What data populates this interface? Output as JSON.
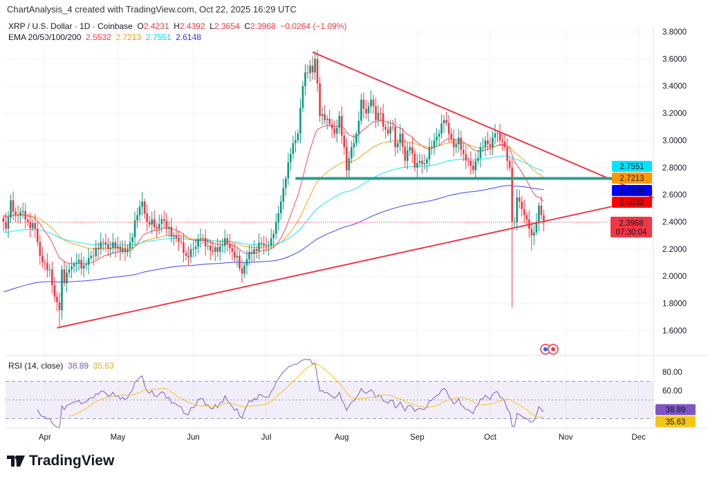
{
  "header": {
    "created_by": "ChartAnalysis_4 created with TradingView.com, Oct 22, 2025 16:29 UTC"
  },
  "legend": {
    "symbol": "XRP / U.S. Dollar · 1D · Coinbase",
    "open_label": "O",
    "open": "2.4231",
    "high_label": "H",
    "high": "2.4392",
    "low_label": "L",
    "low": "2.3654",
    "close_label": "C",
    "close": "2.3968",
    "change": "−0.0264 (−1.09%)",
    "ema_label": "EMA 20/50/100/200",
    "ema20": "2.5532",
    "ema50": "2.7213",
    "ema100": "2.7551",
    "ema200": "2.6148"
  },
  "rsi_legend": {
    "label": "RSI (14, close)",
    "rsi": "38.89",
    "rsi_ma": "35.63"
  },
  "badges": {
    "ema100": "2.7551",
    "ema50": "2.7213",
    "ema200": "2.6148",
    "ema20": "2.5532",
    "last_price": "2.3968",
    "countdown": "07:30:04",
    "rsi": "38.89",
    "rsi_ma": "35.63"
  },
  "logo": {
    "text": "TradingView"
  },
  "colors": {
    "up": "#089981",
    "down": "#f23645",
    "ema20": "#f23645",
    "ema50": "#ff9800",
    "ema100": "#00e5ff",
    "ema200": "#2a2aff",
    "trendline": "#f23645",
    "support": "#2a9d8f",
    "rsi": "#7e57c2",
    "rsi_ma": "#f5c518"
  },
  "chart_data": {
    "type": "candlestick",
    "title": "XRP / U.S. Dollar · 1D · Coinbase",
    "x_unit": "days since Mar 15 2025",
    "x_range": [
      0,
      267
    ],
    "x_ticks": [
      {
        "day": 17,
        "label": "Apr"
      },
      {
        "day": 47,
        "label": "May"
      },
      {
        "day": 78,
        "label": "Jun"
      },
      {
        "day": 108,
        "label": "Jul"
      },
      {
        "day": 139,
        "label": "Aug"
      },
      {
        "day": 170,
        "label": "Sep"
      },
      {
        "day": 200,
        "label": "Oct"
      },
      {
        "day": 231,
        "label": "Nov"
      },
      {
        "day": 261,
        "label": "Dec"
      }
    ],
    "y_range": [
      1.5,
      3.9
    ],
    "y_ticks": [
      "3.8000",
      "3.6000",
      "3.4000",
      "3.2000",
      "3.0000",
      "2.8000",
      "2.6000",
      "2.4000",
      "2.2000",
      "2.0000",
      "1.8000",
      "1.6000"
    ],
    "close_anchors": [
      [
        0,
        2.4
      ],
      [
        1,
        2.35
      ],
      [
        3,
        2.56
      ],
      [
        5,
        2.45
      ],
      [
        8,
        2.48
      ],
      [
        10,
        2.4
      ],
      [
        13,
        2.35
      ],
      [
        15,
        2.15
      ],
      [
        17,
        2.1
      ],
      [
        19,
        2.05
      ],
      [
        21,
        1.85
      ],
      [
        23,
        1.75
      ],
      [
        24,
        2.05
      ],
      [
        25,
        1.95
      ],
      [
        27,
        2.05
      ],
      [
        30,
        2.1
      ],
      [
        33,
        2.08
      ],
      [
        36,
        2.15
      ],
      [
        39,
        2.2
      ],
      [
        41,
        2.25
      ],
      [
        43,
        2.2
      ],
      [
        45,
        2.25
      ],
      [
        47,
        2.22
      ],
      [
        50,
        2.18
      ],
      [
        52,
        2.25
      ],
      [
        55,
        2.45
      ],
      [
        57,
        2.55
      ],
      [
        59,
        2.4
      ],
      [
        61,
        2.42
      ],
      [
        63,
        2.35
      ],
      [
        65,
        2.42
      ],
      [
        67,
        2.35
      ],
      [
        70,
        2.3
      ],
      [
        73,
        2.25
      ],
      [
        75,
        2.15
      ],
      [
        78,
        2.2
      ],
      [
        81,
        2.28
      ],
      [
        83,
        2.22
      ],
      [
        86,
        2.18
      ],
      [
        89,
        2.22
      ],
      [
        91,
        2.28
      ],
      [
        94,
        2.18
      ],
      [
        96,
        2.15
      ],
      [
        98,
        2.02
      ],
      [
        99,
        2.08
      ],
      [
        101,
        2.18
      ],
      [
        103,
        2.2
      ],
      [
        106,
        2.24
      ],
      [
        108,
        2.22
      ],
      [
        110,
        2.28
      ],
      [
        112,
        2.4
      ],
      [
        114,
        2.55
      ],
      [
        116,
        2.72
      ],
      [
        118,
        2.9
      ],
      [
        119,
        2.98
      ],
      [
        121,
        3.05
      ],
      [
        123,
        3.4
      ],
      [
        124,
        3.5
      ],
      [
        126,
        3.55
      ],
      [
        127,
        3.5
      ],
      [
        128,
        3.6
      ],
      [
        129,
        3.42
      ],
      [
        130,
        3.18
      ],
      [
        132,
        3.15
      ],
      [
        134,
        3.12
      ],
      [
        136,
        3.05
      ],
      [
        138,
        3.18
      ],
      [
        140,
        2.95
      ],
      [
        141,
        2.78
      ],
      [
        143,
        2.95
      ],
      [
        145,
        3.05
      ],
      [
        147,
        3.3
      ],
      [
        149,
        3.2
      ],
      [
        150,
        3.25
      ],
      [
        151,
        3.3
      ],
      [
        153,
        3.15
      ],
      [
        155,
        3.2
      ],
      [
        156,
        3.1
      ],
      [
        158,
        3.05
      ],
      [
        160,
        3.1
      ],
      [
        161,
        2.95
      ],
      [
        163,
        3.05
      ],
      [
        165,
        2.85
      ],
      [
        167,
        2.95
      ],
      [
        169,
        2.8
      ],
      [
        171,
        2.85
      ],
      [
        173,
        2.83
      ],
      [
        175,
        2.95
      ],
      [
        177,
        3.0
      ],
      [
        179,
        3.05
      ],
      [
        181,
        3.15
      ],
      [
        183,
        3.05
      ],
      [
        185,
        2.95
      ],
      [
        187,
        3.02
      ],
      [
        189,
        2.9
      ],
      [
        191,
        2.85
      ],
      [
        193,
        2.78
      ],
      [
        194,
        2.85
      ],
      [
        196,
        2.95
      ],
      [
        198,
        3.0
      ],
      [
        200,
        2.95
      ],
      [
        202,
        3.05
      ],
      [
        204,
        3.0
      ],
      [
        206,
        2.95
      ],
      [
        207,
        2.85
      ],
      [
        208,
        2.8
      ],
      [
        209,
        2.4
      ],
      [
        210,
        2.4
      ],
      [
        211,
        2.58
      ],
      [
        212,
        2.55
      ],
      [
        214,
        2.45
      ],
      [
        216,
        2.35
      ],
      [
        217,
        2.3
      ],
      [
        219,
        2.4
      ],
      [
        220,
        2.52
      ],
      [
        221,
        2.45
      ],
      [
        222,
        2.3968
      ]
    ],
    "wick_extremes": [
      {
        "day": 23,
        "low": 1.62
      },
      {
        "day": 128,
        "high": 3.66
      },
      {
        "day": 209,
        "low": 1.77
      },
      {
        "day": 217,
        "low": 2.19
      },
      {
        "day": 3,
        "high": 2.6
      }
    ],
    "ema_periods": [
      20,
      50,
      100,
      200
    ],
    "ema_seeds": {
      "20": 2.45,
      "50": 2.45,
      "100": 2.32,
      "200": 1.88
    },
    "annotations": {
      "upper_trendline": [
        [
          127,
          3.65
        ],
        [
          267,
          2.58
        ]
      ],
      "lower_trendline": [
        [
          22,
          1.62
        ],
        [
          267,
          2.58
        ]
      ],
      "support_line": {
        "from": 120,
        "to": 254,
        "price": 2.72
      },
      "last_price_line": 2.3968
    },
    "rsi": {
      "period": 14,
      "ma_period": 14,
      "y_ticks": [
        "80.00",
        "60.00"
      ],
      "band": [
        30,
        70
      ],
      "y_range": [
        20,
        85
      ]
    }
  }
}
